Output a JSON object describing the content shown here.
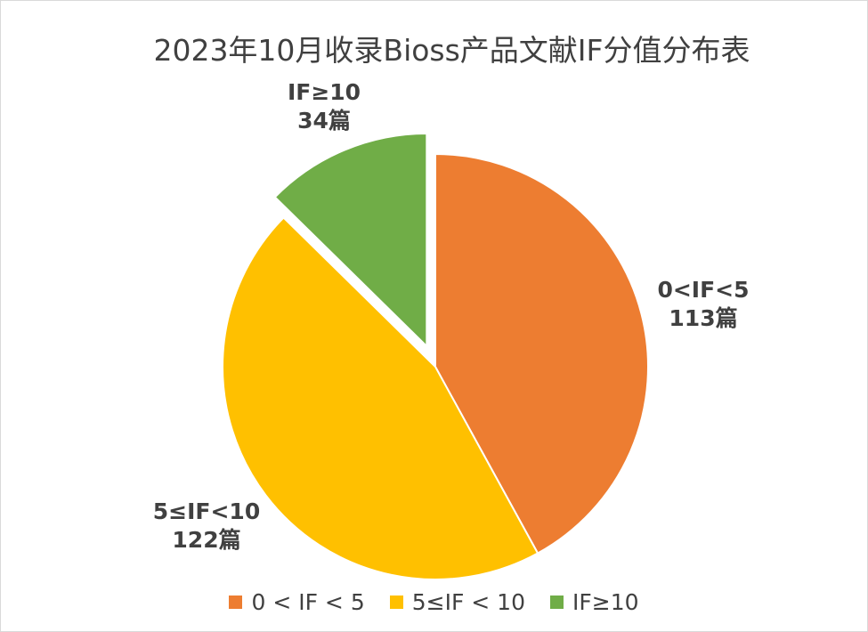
{
  "chart_data": {
    "type": "pie",
    "title": "2023年10月收录Bioss产品文献IF分值分布表",
    "slices": [
      {
        "legend": "0 < IF < 5",
        "label_line1": "0<IF<5",
        "label_line2": "113篇",
        "value": 113,
        "color": "#ED7D31"
      },
      {
        "legend": "5≤IF < 10",
        "label_line1": "5≤IF<10",
        "label_line2": "122篇",
        "value": 122,
        "color": "#FFC000"
      },
      {
        "legend": "IF≥10",
        "label_line1": "IF≥10",
        "label_line2": "34篇",
        "value": 34,
        "color": "#70AD47",
        "exploded": true
      }
    ],
    "start_angle": "12 o'clock",
    "direction": "clockwise",
    "legend_position": "bottom"
  }
}
